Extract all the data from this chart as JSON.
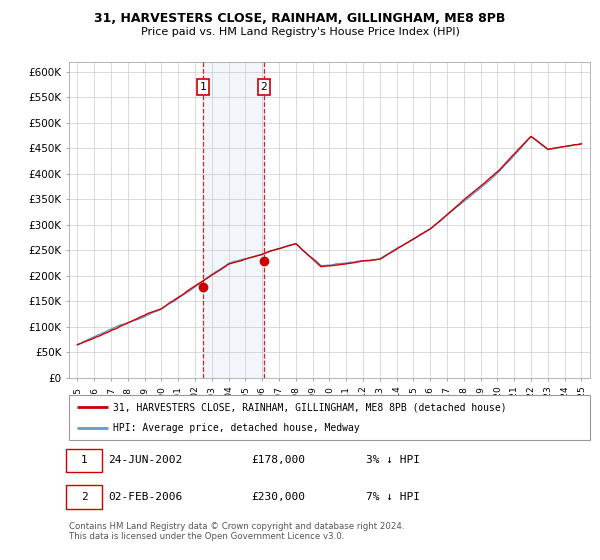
{
  "title1": "31, HARVESTERS CLOSE, RAINHAM, GILLINGHAM, ME8 8PB",
  "title2": "Price paid vs. HM Land Registry's House Price Index (HPI)",
  "legend_line1": "31, HARVESTERS CLOSE, RAINHAM, GILLINGHAM, ME8 8PB (detached house)",
  "legend_line2": "HPI: Average price, detached house, Medway",
  "footer": "Contains HM Land Registry data © Crown copyright and database right 2024.\nThis data is licensed under the Open Government Licence v3.0.",
  "transaction1": {
    "label": "1",
    "date": "24-JUN-2002",
    "price": "£178,000",
    "hpi": "3% ↓ HPI"
  },
  "transaction2": {
    "label": "2",
    "date": "02-FEB-2006",
    "price": "£230,000",
    "hpi": "7% ↓ HPI"
  },
  "sale1_x": 2002.48,
  "sale1_y": 178000,
  "sale2_x": 2006.09,
  "sale2_y": 230000,
  "shade_x1": 2002.48,
  "shade_x2": 2006.09,
  "line_color_red": "#cc0000",
  "line_color_blue": "#6699cc",
  "ylim_min": 0,
  "ylim_max": 620000,
  "xlim_min": 1994.5,
  "xlim_max": 2025.5,
  "yticks": [
    0,
    50000,
    100000,
    150000,
    200000,
    250000,
    300000,
    350000,
    400000,
    450000,
    500000,
    550000,
    600000
  ],
  "ytick_labels": [
    "£0",
    "£50K",
    "£100K",
    "£150K",
    "£200K",
    "£250K",
    "£300K",
    "£350K",
    "£400K",
    "£450K",
    "£500K",
    "£550K",
    "£600K"
  ],
  "xticks": [
    1995,
    1996,
    1997,
    1998,
    1999,
    2000,
    2001,
    2002,
    2003,
    2004,
    2005,
    2006,
    2007,
    2008,
    2009,
    2010,
    2011,
    2012,
    2013,
    2014,
    2015,
    2016,
    2017,
    2018,
    2019,
    2020,
    2021,
    2022,
    2023,
    2024,
    2025
  ]
}
